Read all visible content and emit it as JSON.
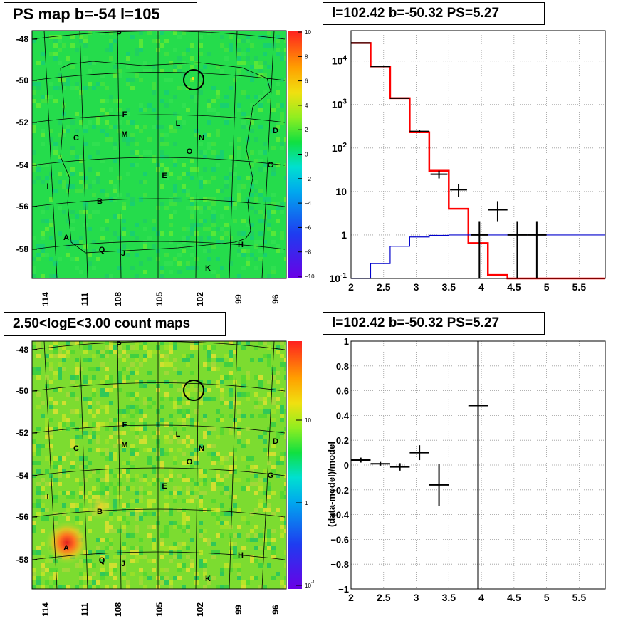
{
  "panels": {
    "ps_map_title": "PS map b=-54 l=105",
    "spectrum_title": "l=102.42 b=-50.32 PS=5.27",
    "count_map_title": "2.50<logE<3.00 count maps",
    "residual_title": "l=102.42 b=-50.32 PS=5.27"
  },
  "chart_data": [
    {
      "type": "heatmap",
      "name": "ps_map",
      "title": "PS map b=-54 l=105",
      "y_ticks": [
        "-48",
        "-50",
        "-52",
        "-54",
        "-56",
        "-58"
      ],
      "x_ticks": [
        "114",
        "111",
        "108",
        "105",
        "102",
        "99",
        "96"
      ],
      "colorbar": {
        "ticks": [
          "10",
          "8",
          "6",
          "4",
          "2",
          "0",
          "−2",
          "−4",
          "−6",
          "−8",
          "−10"
        ],
        "range": [
          -10,
          10
        ]
      },
      "labels": [
        "P",
        "F",
        "M",
        "C",
        "L",
        "N",
        "O",
        "D",
        "G",
        "E",
        "I",
        "B",
        "A",
        "Q",
        "J",
        "H",
        "K"
      ],
      "marker": "circle at l=102.42 b=-50.32"
    },
    {
      "type": "bar",
      "name": "spectrum",
      "title": "l=102.42 b=-50.32 PS=5.27",
      "x_ticks": [
        "2",
        "2.5",
        "3",
        "3.5",
        "4",
        "4.5",
        "5",
        "5.5"
      ],
      "y_ticks": [
        "10^{-1}",
        "1",
        "10",
        "10^{2}",
        "10^{3}",
        "10^{4}"
      ],
      "y_scale": "log",
      "xlim": [
        2,
        5.9
      ],
      "ylim": [
        0.1,
        50000
      ],
      "bin_edges": [
        2.0,
        2.3,
        2.6,
        2.9,
        3.2,
        3.5,
        3.8,
        4.1,
        4.4,
        4.7,
        5.0,
        5.3,
        5.6,
        5.9
      ],
      "series": [
        {
          "color": "#ff0000",
          "values": [
            26000,
            7500,
            1400,
            230,
            30,
            4,
            0.65,
            0.12,
            0.1,
            0.1,
            0.1,
            0.1,
            0.1
          ]
        },
        {
          "color": "#0000cc",
          "values": [
            0.08,
            0.22,
            0.55,
            0.9,
            0.98,
            1.0,
            1.0,
            1.0,
            1.0,
            1.0,
            1.0,
            1.0,
            1.0
          ]
        }
      ],
      "data_points": [
        {
          "x": 2.15,
          "y": 26000,
          "xerr": 0.15,
          "ylo": 25800,
          "yhi": 26200
        },
        {
          "x": 2.45,
          "y": 7500,
          "xerr": 0.15,
          "ylo": 7400,
          "yhi": 7600
        },
        {
          "x": 2.75,
          "y": 1400,
          "xerr": 0.15,
          "ylo": 1360,
          "yhi": 1440
        },
        {
          "x": 3.05,
          "y": 240,
          "xerr": 0.15,
          "ylo": 225,
          "yhi": 255
        },
        {
          "x": 3.35,
          "y": 25,
          "xerr": 0.13,
          "ylo": 20,
          "yhi": 30
        },
        {
          "x": 3.65,
          "y": 11,
          "xerr": 0.13,
          "ylo": 7.5,
          "yhi": 15
        },
        {
          "x": 3.97,
          "y": 1.0,
          "xerr": 0.13,
          "ylo": 0.1,
          "yhi": 2
        },
        {
          "x": 4.25,
          "y": 3.8,
          "xerr": 0.15,
          "ylo": 2,
          "yhi": 6
        },
        {
          "x": 4.55,
          "y": 1.0,
          "xerr": 0.15,
          "ylo": 0.1,
          "yhi": 2
        },
        {
          "x": 4.85,
          "y": 1.0,
          "xerr": 0.15,
          "ylo": 0.1,
          "yhi": 2
        }
      ]
    },
    {
      "type": "heatmap",
      "name": "count_map",
      "title": "2.50<logE<3.00 count maps",
      "y_ticks": [
        "-48",
        "-50",
        "-52",
        "-54",
        "-56",
        "-58"
      ],
      "x_ticks": [
        "114",
        "111",
        "108",
        "105",
        "102",
        "99",
        "96"
      ],
      "colorbar": {
        "ticks": [
          "10",
          "1",
          "10^{-1}"
        ],
        "scale": "log"
      },
      "labels": [
        "P",
        "F",
        "M",
        "C",
        "L",
        "N",
        "O",
        "D",
        "G",
        "E",
        "I",
        "B",
        "A",
        "Q",
        "J",
        "H",
        "K"
      ],
      "marker": "circle at l=102.42 b=-50.32"
    },
    {
      "type": "scatter",
      "name": "residuals",
      "title": "l=102.42 b=-50.32 PS=5.27",
      "ylabel": "(data-model)/model",
      "x_ticks": [
        "2",
        "2.5",
        "3",
        "3.5",
        "4",
        "4.5",
        "5",
        "5.5"
      ],
      "y_ticks": [
        "−1",
        "−0.8",
        "−0.6",
        "−0.4",
        "−0.2",
        "0",
        "0.2",
        "0.4",
        "0.6",
        "0.8",
        "1"
      ],
      "xlim": [
        2,
        5.9
      ],
      "ylim": [
        -1,
        1
      ],
      "points": [
        {
          "x": 2.15,
          "y": 0.04,
          "xerr": 0.15,
          "yerr": 0.02
        },
        {
          "x": 2.45,
          "y": 0.01,
          "xerr": 0.15,
          "yerr": 0.015
        },
        {
          "x": 2.75,
          "y": -0.015,
          "xerr": 0.15,
          "yerr": 0.03
        },
        {
          "x": 3.05,
          "y": 0.1,
          "xerr": 0.15,
          "yerr": 0.06
        },
        {
          "x": 3.35,
          "y": -0.16,
          "xerr": 0.15,
          "yerr": 0.17
        },
        {
          "x": 3.95,
          "y": 0.48,
          "xerr": 0.15,
          "yerr": 1.6
        }
      ]
    }
  ]
}
